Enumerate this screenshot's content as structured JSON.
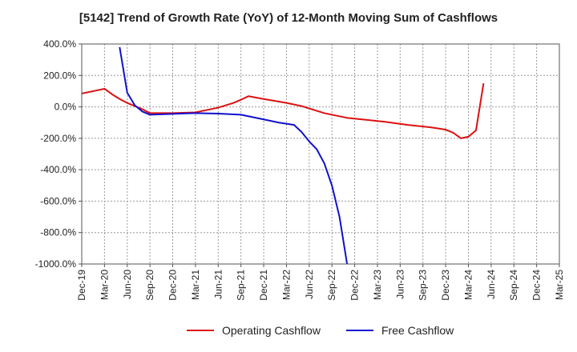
{
  "chart_data": {
    "type": "line",
    "title": "[5142]  Trend of Growth Rate (YoY) of 12-Month Moving Sum of Cashflows",
    "xlabel": "",
    "ylabel": "",
    "ylim": [
      -1000,
      400
    ],
    "y_ticks": [
      400,
      200,
      0,
      -200,
      -400,
      -600,
      -800,
      -1000
    ],
    "y_tick_labels": [
      "400.0%",
      "200.0%",
      "0.0%",
      "-200.0%",
      "-400.0%",
      "-600.0%",
      "-800.0%",
      "-1000.0%"
    ],
    "x_ticks": [
      "Dec-19",
      "Mar-20",
      "Jun-20",
      "Sep-20",
      "Dec-20",
      "Mar-21",
      "Jun-21",
      "Sep-21",
      "Dec-21",
      "Mar-22",
      "Jun-22",
      "Sep-22",
      "Dec-22",
      "Mar-23",
      "Jun-23",
      "Sep-23",
      "Dec-23",
      "Mar-24",
      "Jun-24",
      "Sep-24",
      "Dec-24",
      "Mar-25"
    ],
    "grid": true,
    "legend_position": "bottom",
    "series": [
      {
        "name": "Operating Cashflow",
        "color": "#dd1111",
        "points": [
          [
            0,
            85
          ],
          [
            3,
            115
          ],
          [
            4,
            80
          ],
          [
            5,
            50
          ],
          [
            6,
            25
          ],
          [
            7,
            5
          ],
          [
            8,
            -15
          ],
          [
            9,
            -40
          ],
          [
            12,
            -40
          ],
          [
            15,
            -35
          ],
          [
            18,
            -5
          ],
          [
            20,
            25
          ],
          [
            21,
            45
          ],
          [
            22,
            68
          ],
          [
            24,
            50
          ],
          [
            27,
            25
          ],
          [
            29,
            5
          ],
          [
            32,
            -40
          ],
          [
            35,
            -70
          ],
          [
            37,
            -80
          ],
          [
            40,
            -95
          ],
          [
            43,
            -115
          ],
          [
            46,
            -130
          ],
          [
            48,
            -145
          ],
          [
            49,
            -165
          ],
          [
            50,
            -200
          ],
          [
            51,
            -190
          ],
          [
            52,
            -150
          ],
          [
            53,
            150
          ]
        ]
      },
      {
        "name": "Free Cashflow",
        "color": "#1111cc",
        "points": [
          [
            5,
            380
          ],
          [
            6,
            90
          ],
          [
            7,
            10
          ],
          [
            8,
            -30
          ],
          [
            9,
            -50
          ],
          [
            12,
            -45
          ],
          [
            15,
            -40
          ],
          [
            18,
            -43
          ],
          [
            21,
            -50
          ],
          [
            24,
            -80
          ],
          [
            26,
            -100
          ],
          [
            28,
            -115
          ],
          [
            29,
            -160
          ],
          [
            30,
            -220
          ],
          [
            31,
            -270
          ],
          [
            32,
            -360
          ],
          [
            33,
            -500
          ],
          [
            34,
            -700
          ],
          [
            35,
            -1000
          ]
        ]
      }
    ]
  }
}
